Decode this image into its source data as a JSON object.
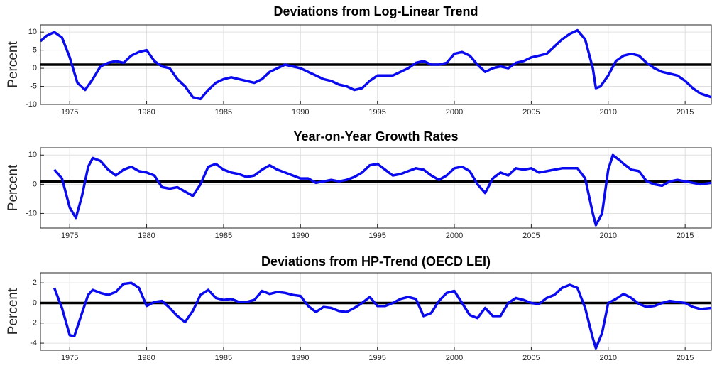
{
  "chart_data": [
    {
      "type": "line",
      "title": "Deviations from Log-Linear Trend",
      "y_label": "Percent",
      "color": "#0a0af0",
      "grid": true,
      "hline": 1,
      "hline_color": "#000000",
      "xlim": [
        1973.1,
        2016.7
      ],
      "xticks": [
        1975,
        1980,
        1985,
        1990,
        1995,
        2000,
        2005,
        2010,
        2015
      ],
      "ylim": [
        -10,
        12
      ],
      "yticks": [
        -10,
        -5,
        0,
        5,
        10
      ],
      "x": [
        1973.1,
        1973.5,
        1974,
        1974.5,
        1975,
        1975.5,
        1976,
        1976.5,
        1977,
        1977.5,
        1978,
        1978.5,
        1979,
        1979.5,
        1980,
        1980.5,
        1981,
        1981.5,
        1982,
        1982.5,
        1983,
        1983.5,
        1984,
        1984.5,
        1985,
        1985.5,
        1986,
        1986.5,
        1987,
        1987.5,
        1988,
        1988.5,
        1989,
        1989.5,
        1990,
        1990.5,
        1991,
        1991.5,
        1992,
        1992.5,
        1993,
        1993.5,
        1994,
        1994.5,
        1995,
        1995.5,
        1996,
        1996.5,
        1997,
        1997.5,
        1998,
        1998.5,
        1999,
        1999.5,
        2000,
        2000.5,
        2001,
        2001.5,
        2002,
        2002.5,
        2003,
        2003.5,
        2004,
        2004.5,
        2005,
        2005.5,
        2006,
        2006.5,
        2007,
        2007.5,
        2008,
        2008.5,
        2009,
        2009.2,
        2009.5,
        2010,
        2010.5,
        2011,
        2011.5,
        2012,
        2012.5,
        2013,
        2013.5,
        2014,
        2014.5,
        2015,
        2015.5,
        2016,
        2016.7
      ],
      "values": [
        7.5,
        9,
        10,
        8.5,
        3,
        -4,
        -6,
        -3,
        0.5,
        1.5,
        2,
        1.5,
        3.5,
        4.5,
        5,
        2,
        0.5,
        0,
        -3,
        -5,
        -8,
        -8.5,
        -6,
        -4,
        -3,
        -2.5,
        -3,
        -3.5,
        -4,
        -3,
        -1,
        0,
        1,
        0.5,
        0,
        -1,
        -2,
        -3,
        -3.5,
        -4.5,
        -5,
        -6,
        -5.5,
        -3.5,
        -2,
        -2,
        -2,
        -1,
        0,
        1.5,
        2,
        1,
        1,
        1.5,
        4,
        4.5,
        3.5,
        1,
        -1,
        0,
        0.5,
        0,
        1.5,
        2,
        3,
        3.5,
        4,
        6,
        8,
        9.5,
        10.5,
        8,
        0,
        -5.5,
        -5,
        -2,
        2,
        3.5,
        4,
        3.5,
        1.5,
        0,
        -1,
        -1.5,
        -2,
        -3.5,
        -5.5,
        -7,
        -8
      ]
    },
    {
      "type": "line",
      "title": "Year-on-Year Growth Rates",
      "y_label": "Percent",
      "color": "#0a0af0",
      "grid": true,
      "hline": 1,
      "hline_color": "#000000",
      "xlim": [
        1973.1,
        2016.7
      ],
      "xticks": [
        1975,
        1980,
        1985,
        1990,
        1995,
        2000,
        2005,
        2010,
        2015
      ],
      "ylim": [
        -15,
        12.5
      ],
      "yticks": [
        -10,
        0,
        10
      ],
      "x": [
        1974,
        1974.5,
        1975,
        1975.4,
        1975.8,
        1976.2,
        1976.5,
        1977,
        1977.5,
        1978,
        1978.5,
        1979,
        1979.5,
        1980,
        1980.5,
        1981,
        1981.5,
        1982,
        1982.5,
        1983,
        1983.5,
        1984,
        1984.5,
        1985,
        1985.5,
        1986,
        1986.5,
        1987,
        1987.5,
        1988,
        1988.5,
        1989,
        1989.5,
        1990,
        1990.5,
        1991,
        1991.5,
        1992,
        1992.5,
        1993,
        1993.5,
        1994,
        1994.5,
        1995,
        1995.5,
        1996,
        1996.5,
        1997,
        1997.5,
        1998,
        1998.5,
        1999,
        1999.5,
        2000,
        2000.5,
        2001,
        2001.5,
        2002,
        2002.5,
        2003,
        2003.5,
        2004,
        2004.5,
        2005,
        2005.5,
        2006,
        2006.5,
        2007,
        2007.5,
        2008,
        2008.5,
        2009,
        2009.2,
        2009.6,
        2010,
        2010.3,
        2010.8,
        2011,
        2011.5,
        2012,
        2012.5,
        2013,
        2013.5,
        2014,
        2014.5,
        2015,
        2015.5,
        2016,
        2016.7
      ],
      "values": [
        5,
        2,
        -8,
        -11.5,
        -4,
        6,
        9,
        8,
        5,
        3,
        5,
        6,
        4.5,
        4,
        3,
        -1,
        -1.5,
        -1,
        -2.5,
        -4,
        0,
        6,
        7,
        5,
        4,
        3.5,
        2.5,
        3,
        5,
        6.5,
        5,
        4,
        3,
        2,
        2,
        0.5,
        1,
        1.5,
        1,
        1.5,
        2.5,
        4,
        6.5,
        7,
        5,
        3,
        3.5,
        4.5,
        5.5,
        5,
        3,
        1.5,
        3,
        5.5,
        6,
        4.5,
        0,
        -3,
        2,
        4,
        3,
        5.5,
        5,
        5.5,
        4,
        4.5,
        5,
        5.5,
        5.5,
        5.5,
        2,
        -10,
        -14,
        -10,
        5,
        10,
        8,
        7,
        5,
        4.5,
        1,
        0,
        -0.5,
        1,
        1.5,
        1,
        0.5,
        0,
        0.5
      ]
    },
    {
      "type": "line",
      "title": "Deviations from HP-Trend (OECD LEI)",
      "y_label": "Percent",
      "color": "#0a0af0",
      "grid": true,
      "hline": 0,
      "hline_color": "#000000",
      "xlim": [
        1973.1,
        2016.7
      ],
      "xticks": [
        1975,
        1980,
        1985,
        1990,
        1995,
        2000,
        2005,
        2010,
        2015
      ],
      "ylim": [
        -4.7,
        3
      ],
      "yticks": [
        -4,
        -2,
        0,
        2
      ],
      "x": [
        1974,
        1974.5,
        1975,
        1975.3,
        1975.8,
        1976.2,
        1976.5,
        1977,
        1977.5,
        1978,
        1978.5,
        1979,
        1979.5,
        1980,
        1980.5,
        1981,
        1981.5,
        1982,
        1982.5,
        1983,
        1983.5,
        1984,
        1984.5,
        1985,
        1985.5,
        1986,
        1986.5,
        1987,
        1987.5,
        1988,
        1988.5,
        1989,
        1989.5,
        1990,
        1990.5,
        1991,
        1991.5,
        1992,
        1992.5,
        1993,
        1993.5,
        1994,
        1994.5,
        1995,
        1995.5,
        1996,
        1996.5,
        1997,
        1997.5,
        1998,
        1998.5,
        1999,
        1999.5,
        2000,
        2000.5,
        2001,
        2001.5,
        2002,
        2002.5,
        2003,
        2003.5,
        2004,
        2004.5,
        2005,
        2005.5,
        2006,
        2006.5,
        2007,
        2007.5,
        2008,
        2008.5,
        2009,
        2009.2,
        2009.6,
        2010,
        2010.5,
        2011,
        2011.5,
        2012,
        2012.5,
        2013,
        2013.5,
        2014,
        2014.5,
        2015,
        2015.5,
        2016,
        2016.7
      ],
      "values": [
        1.5,
        -0.5,
        -3.2,
        -3.3,
        -1,
        0.8,
        1.3,
        1,
        0.8,
        1.1,
        1.9,
        2,
        1.5,
        -0.3,
        0.1,
        0.2,
        -0.5,
        -1.3,
        -1.9,
        -0.8,
        0.8,
        1.3,
        0.5,
        0.3,
        0.4,
        0.1,
        0.1,
        0.3,
        1.2,
        0.9,
        1.1,
        1,
        0.8,
        0.7,
        -0.3,
        -0.9,
        -0.4,
        -0.5,
        -0.8,
        -0.9,
        -0.5,
        0,
        0.6,
        -0.3,
        -0.3,
        0,
        0.4,
        0.6,
        0.4,
        -1.3,
        -1,
        0.2,
        1,
        1.2,
        0,
        -1.2,
        -1.5,
        -0.5,
        -1.3,
        -1.3,
        0,
        0.5,
        0.3,
        0,
        -0.1,
        0.5,
        0.8,
        1.5,
        1.8,
        1.5,
        -0.5,
        -3.5,
        -4.5,
        -3,
        0,
        0.4,
        0.9,
        0.5,
        -0.1,
        -0.4,
        -0.3,
        0,
        0.2,
        0.1,
        0,
        -0.4,
        -0.6,
        -0.5
      ]
    }
  ]
}
